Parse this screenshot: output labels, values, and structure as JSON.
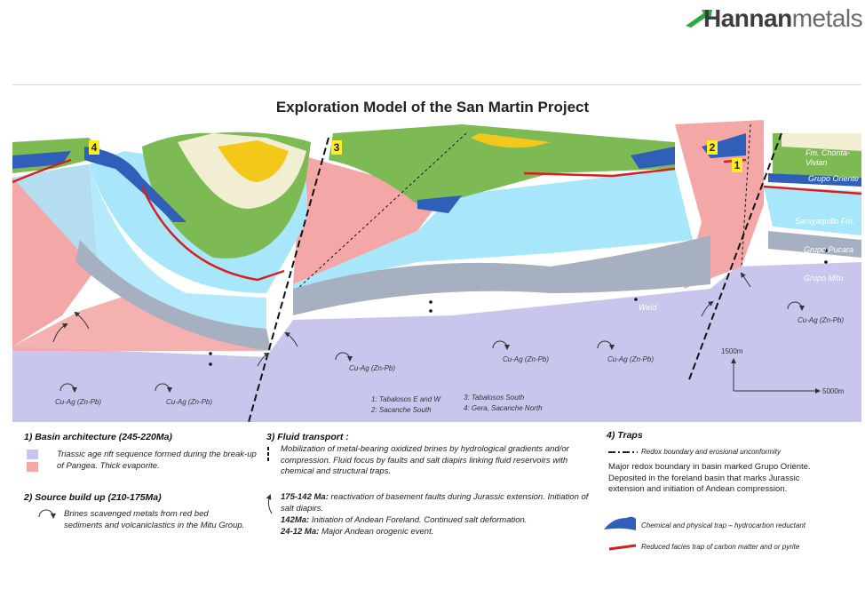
{
  "logo": {
    "bold": "Hannan",
    "light": "metals"
  },
  "title": "Exploration Model of the San Martin Project",
  "section_labels": {
    "trap_numbers": [
      "4",
      "3",
      "2",
      "1"
    ],
    "formations": [
      "Fm. Chonta-Vivian",
      "Grupo Oriente",
      "Sarayaquillo Fm.",
      "Grupo Pucara",
      "Grupo Mitu"
    ],
    "weld": "Weld",
    "cu_ag": "Cu-Ag (Zn-Pb)",
    "scale_vertical": "1500m",
    "scale_horizontal": "5000m",
    "targets": [
      "1: Tabalosos E and W",
      "2: Sacanche South",
      "3: Tabalosos South",
      "4: Gera, Sacanche North"
    ]
  },
  "legend": {
    "basin": {
      "heading": "1) Basin architecture (245-220Ma)",
      "text": "Triassic age rift sequence formed during the break-up of Pangea. Thick evaporite.",
      "colors": [
        "#c9c6ee",
        "#f4a7a7"
      ]
    },
    "source": {
      "heading": "2) Source build up (210-175Ma)",
      "text": "Brines scavenged metals from red bed sediments and volcaniclastics in the Mitu Group."
    },
    "fluid": {
      "heading": "3) Fluid transport :",
      "text": "Mobilization of metal-bearing oxidized brines by hydrological gradients and/or compression. Fluid focus by faults and salt diapirs linking fluid reservoirs with chemical and structural traps.",
      "events": [
        {
          "age": "175-142 Ma:",
          "text": "reactivation of basement faults during Jurassic extension. Initiation of salt diapirs."
        },
        {
          "age": "142Ma:",
          "text": "Initiation of Andean Foreland. Continued salt deformation."
        },
        {
          "age": "24-12 Ma:",
          "text": "Major Andean orogenic event."
        }
      ]
    },
    "traps": {
      "heading": "4) Traps",
      "redox": "Redox boundary and erosional unconformity",
      "major": "Major redox boundary in basin marked Grupo Oriente. Deposited in the foreland basin that marks Jurassic extension and initiation of Andean compression.",
      "chemical": "Chemical and physical trap – hydrocarbon  reductant",
      "reduced": "Reduced facies trap of carbon matter and or pyrite"
    }
  },
  "colors": {
    "lilac": "#c9c6ee",
    "pink": "#f4a7a7",
    "cyan": "#a8e6fb",
    "grey": "#a7b0c0",
    "green": "#7dba54",
    "blue": "#2f5fb8",
    "yellow": "#f4c81a",
    "cream": "#f2eed2",
    "red": "#d91e1e"
  }
}
